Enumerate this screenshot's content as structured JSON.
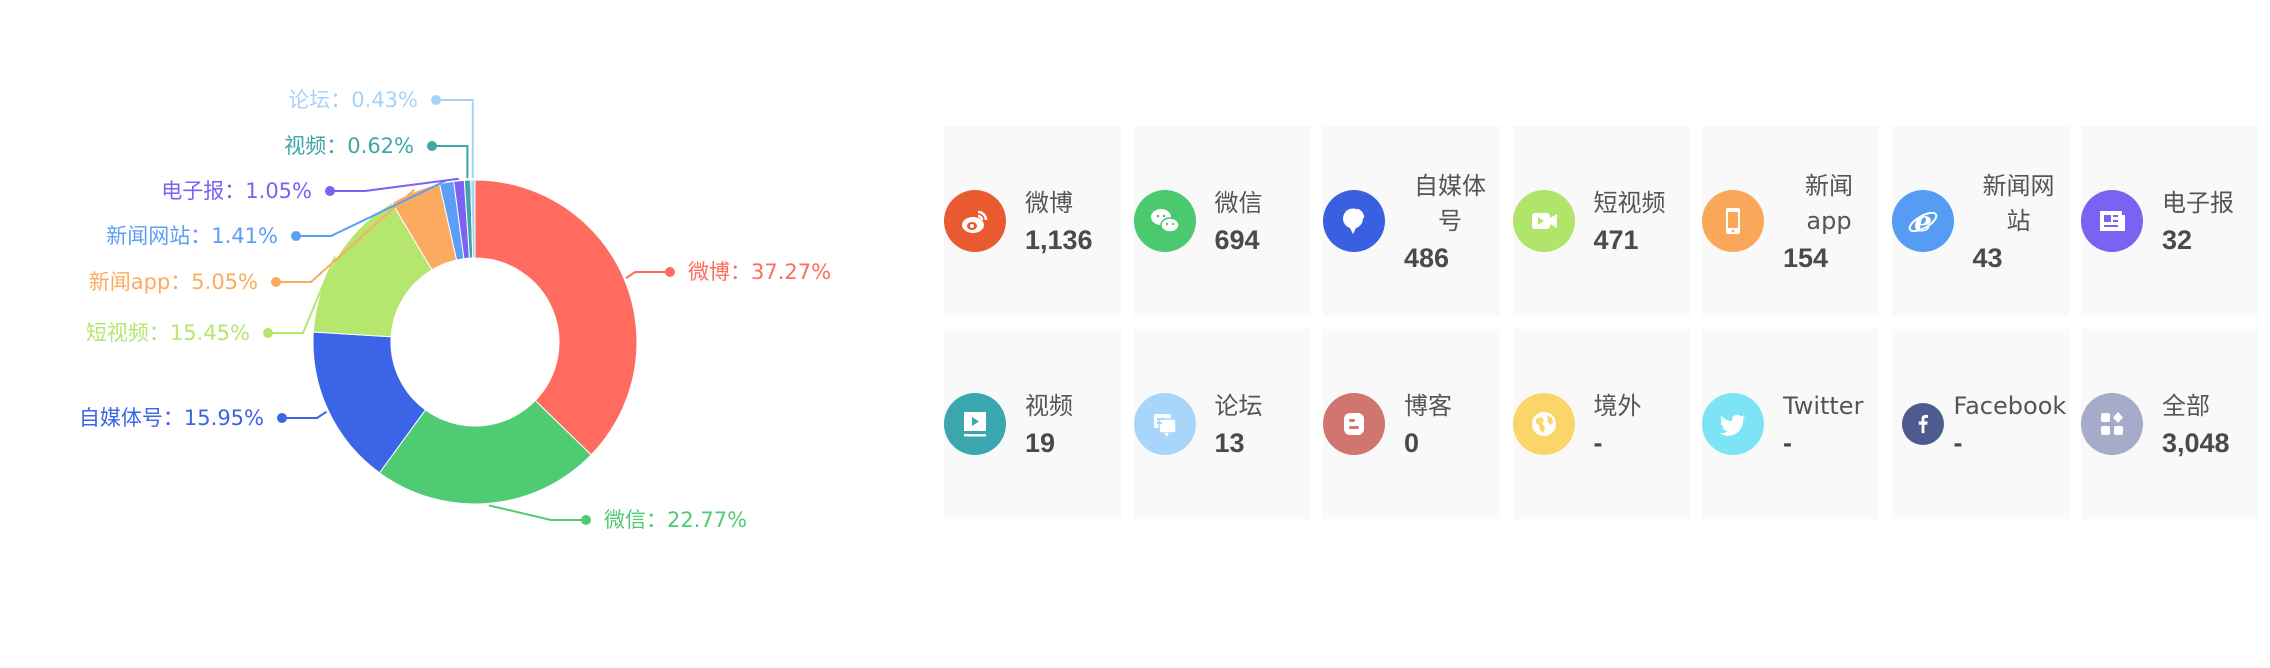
{
  "chart_data": {
    "type": "pie",
    "variant": "donut",
    "start": "top, clockwise",
    "slices": [
      {
        "name": "微博",
        "value": 1136,
        "label": "微博：37.27%",
        "color": "#ff6b5f"
      },
      {
        "name": "微信",
        "value": 694,
        "label": "微信：22.77%",
        "color": "#4fcb74"
      },
      {
        "name": "自媒体号",
        "value": 486,
        "label": "自媒体号：15.95%",
        "color": "#3c64e6"
      },
      {
        "name": "短视频",
        "value": 471,
        "label": "短视频：15.45%",
        "color": "#b5e66d"
      },
      {
        "name": "新闻app",
        "value": 154,
        "label": "新闻app：5.05%",
        "color": "#fbab5f"
      },
      {
        "name": "新闻网站",
        "value": 43,
        "label": "新闻网站：1.41%",
        "color": "#5a9ef5"
      },
      {
        "name": "电子报",
        "value": 32,
        "label": "电子报：1.05%",
        "color": "#7b62f4"
      },
      {
        "name": "视频",
        "value": 19,
        "label": "视频：0.62%",
        "color": "#3fa6a8"
      },
      {
        "name": "论坛",
        "value": 13,
        "label": "论坛：0.43%",
        "color": "#a6d3f9"
      }
    ]
  },
  "cards": [
    {
      "label": "微博",
      "value": "1,136",
      "icon": "weibo-icon",
      "color": "#ea5a31"
    },
    {
      "label": "微信",
      "value": "694",
      "icon": "wechat-icon",
      "color": "#4cc96e"
    },
    {
      "label": "自媒体号",
      "value": "486",
      "icon": "self-media-icon",
      "color": "#3860e0"
    },
    {
      "label": "短视频",
      "value": "471",
      "icon": "short-video-icon",
      "color": "#b0e46a"
    },
    {
      "label": "新闻app",
      "value": "154",
      "icon": "phone-icon",
      "color": "#f9a85a"
    },
    {
      "label": "新闻网站",
      "value": "43",
      "icon": "ie-browser-icon",
      "color": "#559cf2"
    },
    {
      "label": "电子报",
      "value": "32",
      "icon": "newspaper-icon",
      "color": "#7a63f3"
    },
    {
      "label": "视频",
      "value": "19",
      "icon": "video-icon",
      "color": "#3aa6ad"
    },
    {
      "label": "论坛",
      "value": "13",
      "icon": "forum-icon",
      "color": "#a8d5fb"
    },
    {
      "label": "博客",
      "value": "0",
      "icon": "blogger-icon",
      "color": "#d0756f"
    },
    {
      "label": "境外",
      "value": "-",
      "icon": "globe-icon",
      "color": "#fcd56a"
    },
    {
      "label": "Twitter",
      "value": "-",
      "icon": "twitter-icon",
      "color": "#7de4f6"
    },
    {
      "label": "Facebook",
      "value": "-",
      "icon": "facebook-icon",
      "color": "#4d5b8f"
    },
    {
      "label": "全部",
      "value": "3,048",
      "icon": "all-apps-icon",
      "color": "#a5abc8"
    }
  ]
}
